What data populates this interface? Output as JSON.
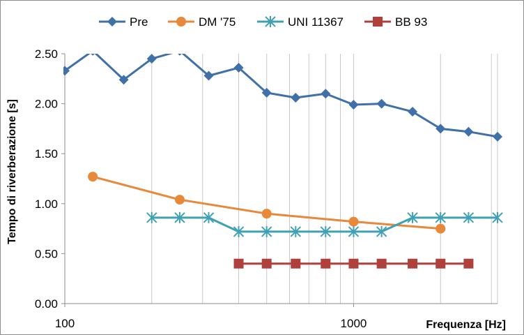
{
  "chart_data": {
    "type": "line",
    "title": "",
    "xlabel": "Frequenza [Hz]",
    "ylabel": "Tempo di riverberazione [s]",
    "x_scale": "log",
    "xlim": [
      100,
      3150
    ],
    "ylim": [
      0,
      2.5
    ],
    "x_tick_labels": [
      "100",
      "1000"
    ],
    "y_tick_labels": [
      "0.00",
      "0.50",
      "1.00",
      "1.50",
      "2.00",
      "2.50"
    ],
    "grid": {
      "vertical": true,
      "horizontal": false
    },
    "legend_position": "top",
    "series": [
      {
        "name": "Pre",
        "color": "#3f70a8",
        "marker": "diamond",
        "x": [
          100,
          125,
          160,
          200,
          250,
          315,
          400,
          500,
          630,
          800,
          1000,
          1250,
          1600,
          2000,
          2500,
          3150
        ],
        "y": [
          2.33,
          2.53,
          2.24,
          2.45,
          2.53,
          2.28,
          2.36,
          2.11,
          2.06,
          2.1,
          1.99,
          2.0,
          1.92,
          1.75,
          1.72,
          1.67
        ]
      },
      {
        "name": "DM '75",
        "color": "#e8883a",
        "marker": "circle",
        "x": [
          125,
          250,
          500,
          1000,
          2000
        ],
        "y": [
          1.27,
          1.04,
          0.9,
          0.82,
          0.75
        ]
      },
      {
        "name": "UNI 11367",
        "color": "#40a1b4",
        "marker": "asterisk",
        "x": [
          200,
          250,
          315,
          400,
          500,
          630,
          800,
          1000,
          1250,
          1600,
          2000,
          2500,
          3150
        ],
        "y": [
          0.86,
          0.86,
          0.86,
          0.72,
          0.72,
          0.72,
          0.72,
          0.72,
          0.72,
          0.86,
          0.86,
          0.86,
          0.86
        ]
      },
      {
        "name": "BB 93",
        "color": "#b0403c",
        "marker": "square",
        "x": [
          400,
          500,
          630,
          800,
          1000,
          1250,
          1600,
          2000,
          2500
        ],
        "y": [
          0.4,
          0.4,
          0.4,
          0.4,
          0.4,
          0.4,
          0.4,
          0.4,
          0.4
        ]
      }
    ]
  }
}
